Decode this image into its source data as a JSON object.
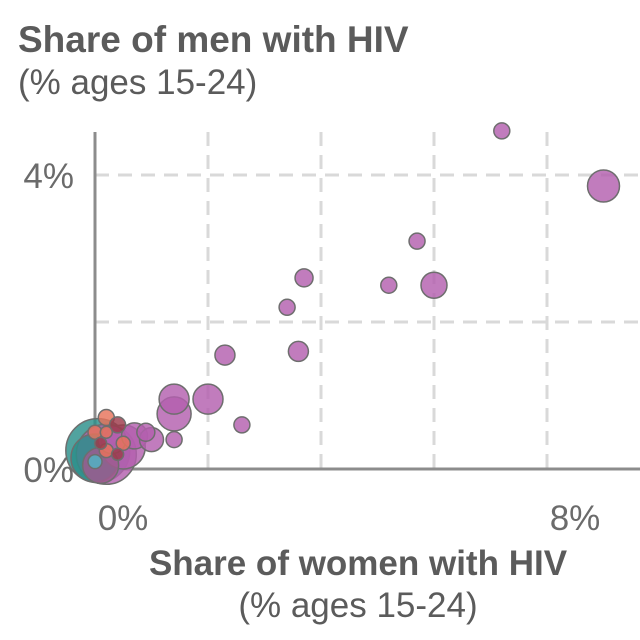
{
  "chart_data": {
    "type": "scatter",
    "title": "Share of men with HIV",
    "title_unit": "(% ages 15-24)",
    "xlabel": "Share of women with HIV",
    "xlabel_unit": "(% ages 15-24)",
    "xlim": [
      0,
      9
    ],
    "ylim": [
      0,
      5
    ],
    "x_ticks": [
      {
        "value": 0,
        "label": "0%"
      },
      {
        "value": 8,
        "label": "8%"
      }
    ],
    "y_ticks": [
      {
        "value": 0,
        "label": "0%"
      },
      {
        "value": 4,
        "label": "4%"
      }
    ],
    "x_grid": [
      2,
      4,
      6,
      8
    ],
    "y_grid": [
      2,
      4
    ],
    "grid": "dashed",
    "colors": {
      "purple": "#b35fae",
      "orange": "#e8735a",
      "darkred": "#9e3a4a",
      "teal": "#2b8f8a",
      "cyan": "#4fb6c4",
      "mauve": "#a05a8f"
    },
    "points": [
      {
        "x": 7.2,
        "y": 4.6,
        "size": 8,
        "color": "purple"
      },
      {
        "x": 9.0,
        "y": 3.85,
        "size": 16,
        "color": "purple"
      },
      {
        "x": 5.7,
        "y": 3.1,
        "size": 8,
        "color": "purple"
      },
      {
        "x": 3.7,
        "y": 2.6,
        "size": 9,
        "color": "purple"
      },
      {
        "x": 5.2,
        "y": 2.5,
        "size": 8,
        "color": "purple"
      },
      {
        "x": 6.0,
        "y": 2.5,
        "size": 13,
        "color": "purple"
      },
      {
        "x": 3.4,
        "y": 2.2,
        "size": 8,
        "color": "purple"
      },
      {
        "x": 2.3,
        "y": 1.55,
        "size": 10,
        "color": "purple"
      },
      {
        "x": 3.6,
        "y": 1.6,
        "size": 10,
        "color": "purple"
      },
      {
        "x": 1.4,
        "y": 0.95,
        "size": 15,
        "color": "purple"
      },
      {
        "x": 2.0,
        "y": 0.95,
        "size": 15,
        "color": "purple"
      },
      {
        "x": 1.4,
        "y": 0.75,
        "size": 17,
        "color": "purple"
      },
      {
        "x": 2.6,
        "y": 0.6,
        "size": 8,
        "color": "purple"
      },
      {
        "x": 1.0,
        "y": 0.4,
        "size": 12,
        "color": "purple"
      },
      {
        "x": 1.4,
        "y": 0.4,
        "size": 8,
        "color": "purple"
      },
      {
        "x": 0.9,
        "y": 0.5,
        "size": 9,
        "color": "purple"
      },
      {
        "x": 0.7,
        "y": 0.45,
        "size": 13,
        "color": "purple"
      },
      {
        "x": 0.5,
        "y": 0.3,
        "size": 22,
        "color": "purple"
      },
      {
        "x": 0.2,
        "y": 0.2,
        "size": 30,
        "color": "purple"
      },
      {
        "x": 0.3,
        "y": 0.4,
        "size": 14,
        "color": "purple"
      },
      {
        "x": 0.05,
        "y": 0.25,
        "size": 32,
        "color": "teal"
      },
      {
        "x": 0.0,
        "y": 0.15,
        "size": 24,
        "color": "teal"
      },
      {
        "x": 0.1,
        "y": 0.05,
        "size": 18,
        "color": "mauve"
      },
      {
        "x": 0.2,
        "y": 0.7,
        "size": 8,
        "color": "orange"
      },
      {
        "x": 0.4,
        "y": 0.6,
        "size": 8,
        "color": "darkred"
      },
      {
        "x": 0.0,
        "y": 0.5,
        "size": 7,
        "color": "orange"
      },
      {
        "x": 0.2,
        "y": 0.5,
        "size": 6,
        "color": "orange"
      },
      {
        "x": 0.5,
        "y": 0.35,
        "size": 7,
        "color": "orange"
      },
      {
        "x": 0.2,
        "y": 0.25,
        "size": 7,
        "color": "orange"
      },
      {
        "x": 0.4,
        "y": 0.2,
        "size": 6,
        "color": "darkred"
      },
      {
        "x": 0.1,
        "y": 0.35,
        "size": 6,
        "color": "darkred"
      },
      {
        "x": 0.0,
        "y": 0.1,
        "size": 7,
        "color": "cyan"
      }
    ]
  }
}
